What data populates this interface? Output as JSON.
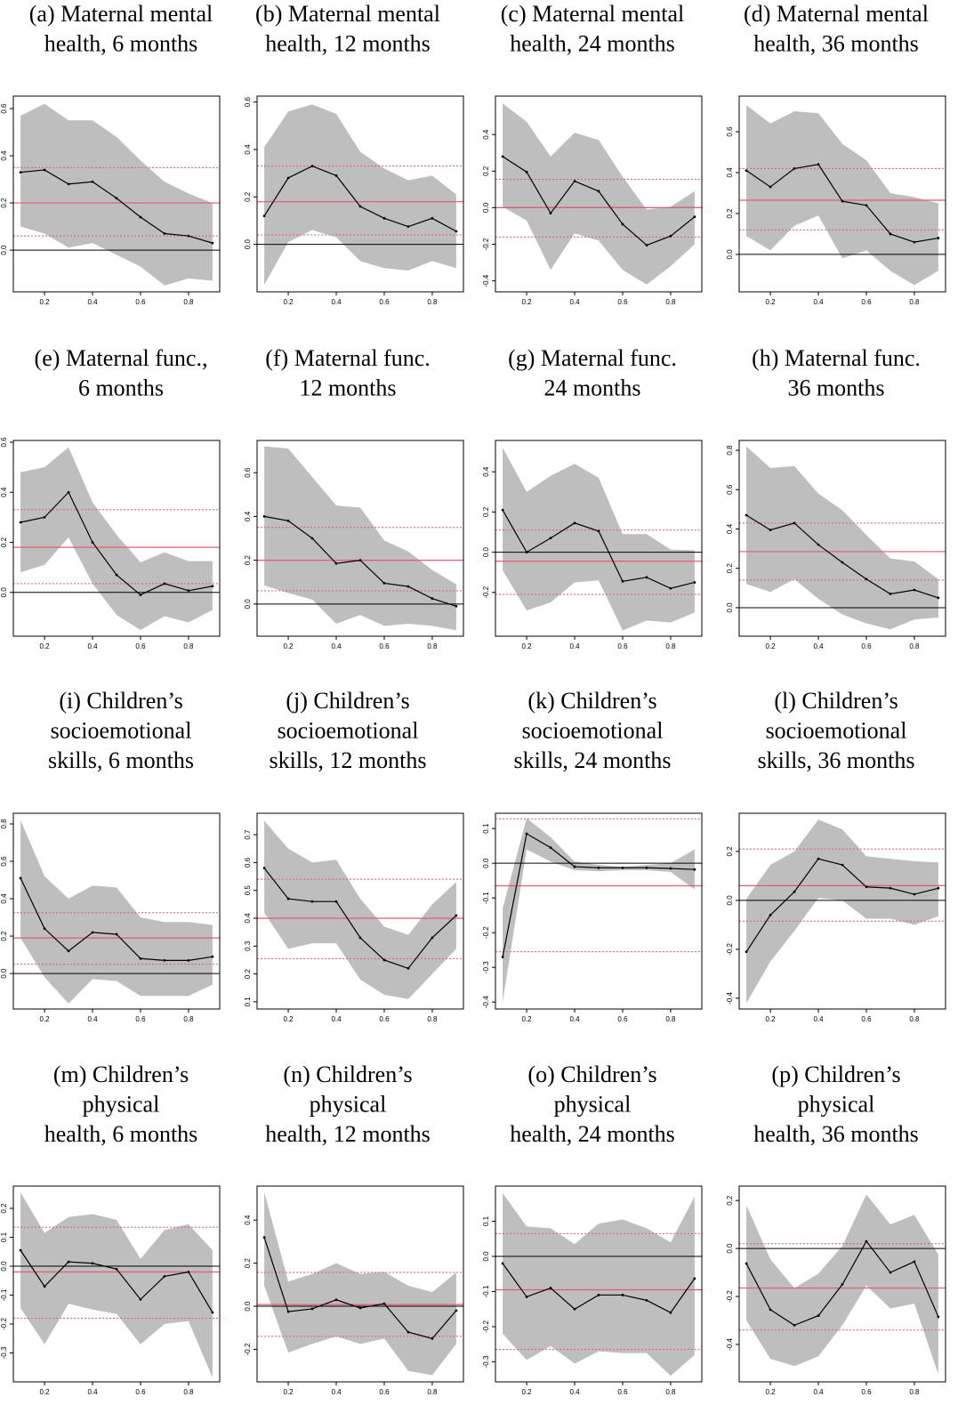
{
  "style": {
    "line_color": "#000000",
    "band_color": "#bebebe",
    "ref_color": "#e8596e",
    "zero_color": "#000000",
    "zero_line": 0
  },
  "chart_data": [
    {
      "type": "line",
      "title": [
        "(a) Maternal mental",
        "health, 6 months"
      ],
      "x": [
        0.1,
        0.2,
        0.3,
        0.4,
        0.5,
        0.6,
        0.7,
        0.8,
        0.9
      ],
      "values": [
        0.33,
        0.34,
        0.28,
        0.29,
        0.22,
        0.14,
        0.07,
        0.06,
        0.03
      ],
      "upper": [
        0.57,
        0.62,
        0.55,
        0.55,
        0.48,
        0.38,
        0.29,
        0.24,
        0.2
      ],
      "lower": [
        0.1,
        0.07,
        0.01,
        0.03,
        -0.02,
        -0.07,
        -0.15,
        -0.12,
        -0.13
      ],
      "mean": 0.2,
      "mean_ci": [
        0.06,
        0.35
      ],
      "xlim": [
        0.07,
        0.93
      ],
      "xticks": [
        0.2,
        0.4,
        0.6,
        0.8
      ],
      "ylim": [
        -0.177,
        0.653
      ],
      "yticks": [
        {
          "value": 0,
          "label": "0.0"
        },
        0.2,
        0.4,
        0.6
      ]
    },
    {
      "type": "line",
      "title": [
        "(b) Maternal mental",
        "health, 12 months"
      ],
      "x": [
        0.1,
        0.2,
        0.3,
        0.4,
        0.5,
        0.6,
        0.7,
        0.8,
        0.9
      ],
      "values": [
        0.12,
        0.28,
        0.33,
        0.29,
        0.16,
        0.11,
        0.075,
        0.11,
        0.055
      ],
      "upper": [
        0.41,
        0.56,
        0.59,
        0.55,
        0.39,
        0.32,
        0.27,
        0.29,
        0.21
      ],
      "lower": [
        -0.17,
        0.01,
        0.06,
        0.03,
        -0.07,
        -0.1,
        -0.11,
        -0.07,
        -0.1
      ],
      "mean": 0.18,
      "mean_ci": [
        0.04,
        0.33
      ],
      "xlim": [
        0.07,
        0.93
      ],
      "xticks": [
        0.2,
        0.4,
        0.6,
        0.8
      ],
      "ylim": [
        -0.2,
        0.625
      ],
      "yticks": [
        {
          "value": 0,
          "label": "0.0"
        },
        0.2,
        0.4,
        0.6
      ]
    },
    {
      "type": "line",
      "title": [
        "(c) Maternal mental",
        "health, 24 months"
      ],
      "x": [
        0.1,
        0.2,
        0.3,
        0.4,
        0.5,
        0.6,
        0.7,
        0.8,
        0.9
      ],
      "values": [
        0.28,
        0.195,
        -0.03,
        0.145,
        0.09,
        -0.09,
        -0.205,
        -0.155,
        -0.05
      ],
      "upper": [
        0.57,
        0.47,
        0.28,
        0.41,
        0.37,
        0.17,
        -0.01,
        0.005,
        0.09
      ],
      "lower": [
        0.005,
        -0.07,
        -0.34,
        -0.14,
        -0.18,
        -0.34,
        -0.42,
        -0.32,
        -0.2
      ],
      "mean": 0.0,
      "mean_ci": [
        -0.16,
        0.155
      ],
      "xlim": [
        0.07,
        0.93
      ],
      "xticks": [
        0.2,
        0.4,
        0.6,
        0.8
      ],
      "ylim": [
        -0.46,
        0.61
      ],
      "yticks": [
        -0.4,
        -0.2,
        {
          "value": 0,
          "label": "0.0"
        },
        0.2,
        0.4
      ]
    },
    {
      "type": "line",
      "title": [
        "(d) Maternal mental",
        "health, 36 months"
      ],
      "x": [
        0.1,
        0.2,
        0.3,
        0.4,
        0.5,
        0.6,
        0.7,
        0.8,
        0.9
      ],
      "values": [
        0.41,
        0.33,
        0.42,
        0.44,
        0.26,
        0.24,
        0.1,
        0.06,
        0.08
      ],
      "upper": [
        0.73,
        0.64,
        0.7,
        0.69,
        0.54,
        0.46,
        0.3,
        0.28,
        0.25
      ],
      "lower": [
        0.09,
        0.02,
        0.14,
        0.19,
        -0.02,
        0.02,
        -0.08,
        -0.15,
        -0.08
      ],
      "mean": 0.265,
      "mean_ci": [
        0.12,
        0.42
      ],
      "xlim": [
        0.07,
        0.93
      ],
      "xticks": [
        0.2,
        0.4,
        0.6,
        0.8
      ],
      "ylim": [
        -0.183,
        0.774
      ],
      "yticks": [
        {
          "value": 0,
          "label": "0.0"
        },
        0.2,
        0.4,
        0.6
      ]
    },
    {
      "type": "line",
      "title": [
        "(e) Maternal func.,",
        "6 months"
      ],
      "x": [
        0.1,
        0.2,
        0.3,
        0.4,
        0.5,
        0.6,
        0.7,
        0.8,
        0.9
      ],
      "values": [
        0.28,
        0.3,
        0.4,
        0.2,
        0.07,
        -0.01,
        0.035,
        0.007,
        0.025
      ],
      "upper": [
        0.48,
        0.5,
        0.58,
        0.36,
        0.23,
        0.12,
        0.16,
        0.125,
        0.125
      ],
      "lower": [
        0.08,
        0.11,
        0.22,
        0.035,
        -0.09,
        -0.15,
        -0.095,
        -0.12,
        -0.07
      ],
      "mean": 0.18,
      "mean_ci": [
        0.035,
        0.33
      ],
      "xlim": [
        0.07,
        0.93
      ],
      "xticks": [
        0.2,
        0.4,
        0.6,
        0.8
      ],
      "ylim": [
        -0.175,
        0.607
      ],
      "yticks": [
        {
          "value": 0,
          "label": "0.0"
        },
        0.2,
        0.4,
        0.6
      ]
    },
    {
      "type": "line",
      "title": [
        "(f) Maternal func.",
        "12 months"
      ],
      "x": [
        0.1,
        0.2,
        0.3,
        0.4,
        0.5,
        0.6,
        0.7,
        0.8,
        0.9
      ],
      "values": [
        0.4,
        0.38,
        0.3,
        0.185,
        0.2,
        0.095,
        0.08,
        0.025,
        -0.01
      ],
      "upper": [
        0.72,
        0.71,
        0.58,
        0.45,
        0.44,
        0.29,
        0.24,
        0.155,
        0.09
      ],
      "lower": [
        0.085,
        0.05,
        0.02,
        -0.09,
        -0.05,
        -0.1,
        -0.09,
        -0.1,
        -0.12
      ],
      "mean": 0.2,
      "mean_ci": [
        0.06,
        0.35
      ],
      "xlim": [
        0.07,
        0.93
      ],
      "xticks": [
        0.2,
        0.4,
        0.6,
        0.8
      ],
      "ylim": [
        -0.147,
        0.747
      ],
      "yticks": [
        {
          "value": 0,
          "label": "0.0"
        },
        0.2,
        0.4,
        0.6
      ]
    },
    {
      "type": "line",
      "title": [
        "(g) Maternal func.",
        "24 months"
      ],
      "x": [
        0.1,
        0.2,
        0.3,
        0.4,
        0.5,
        0.6,
        0.7,
        0.8,
        0.9
      ],
      "values": [
        0.21,
        0.0,
        0.07,
        0.145,
        0.105,
        -0.145,
        -0.125,
        -0.18,
        -0.15
      ],
      "upper": [
        0.52,
        0.3,
        0.38,
        0.44,
        0.37,
        0.09,
        0.09,
        0.013,
        0.01
      ],
      "lower": [
        -0.09,
        -0.29,
        -0.25,
        -0.15,
        -0.14,
        -0.39,
        -0.34,
        -0.35,
        -0.3
      ],
      "mean": -0.045,
      "mean_ci": [
        -0.21,
        0.11
      ],
      "xlim": [
        0.07,
        0.93
      ],
      "xticks": [
        0.2,
        0.4,
        0.6,
        0.8
      ],
      "ylim": [
        -0.418,
        0.556
      ],
      "yticks": [
        -0.2,
        {
          "value": 0,
          "label": "0.0"
        },
        0.2,
        0.4
      ]
    },
    {
      "type": "line",
      "title": [
        "(h) Maternal func.",
        "36 months"
      ],
      "x": [
        0.1,
        0.2,
        0.3,
        0.4,
        0.5,
        0.6,
        0.7,
        0.8,
        0.9
      ],
      "values": [
        0.47,
        0.395,
        0.43,
        0.32,
        0.23,
        0.145,
        0.07,
        0.09,
        0.05
      ],
      "upper": [
        0.82,
        0.71,
        0.72,
        0.58,
        0.495,
        0.37,
        0.25,
        0.235,
        0.145
      ],
      "lower": [
        0.12,
        0.08,
        0.145,
        0.045,
        -0.035,
        -0.08,
        -0.11,
        -0.06,
        -0.05
      ],
      "mean": 0.285,
      "mean_ci": [
        0.14,
        0.43
      ],
      "xlim": [
        0.07,
        0.93
      ],
      "xticks": [
        0.2,
        0.4,
        0.6,
        0.8
      ],
      "ylim": [
        -0.145,
        0.85
      ],
      "yticks": [
        {
          "value": 0,
          "label": "0.0"
        },
        0.2,
        0.4,
        0.6,
        0.8
      ]
    },
    {
      "type": "line",
      "title": [
        "(i) Children’s",
        "socioemotional",
        "skills, 6 months"
      ],
      "x": [
        0.1,
        0.2,
        0.3,
        0.4,
        0.5,
        0.6,
        0.7,
        0.8,
        0.9
      ],
      "values": [
        0.51,
        0.24,
        0.12,
        0.22,
        0.21,
        0.08,
        0.07,
        0.07,
        0.09
      ],
      "upper": [
        0.82,
        0.52,
        0.4,
        0.47,
        0.46,
        0.3,
        0.275,
        0.275,
        0.26
      ],
      "lower": [
        0.19,
        -0.02,
        -0.16,
        -0.03,
        -0.04,
        -0.12,
        -0.12,
        -0.12,
        -0.06
      ],
      "mean": 0.19,
      "mean_ci": [
        0.05,
        0.325
      ],
      "xlim": [
        0.07,
        0.93
      ],
      "xticks": [
        0.2,
        0.4,
        0.6,
        0.8
      ],
      "ylim": [
        -0.19,
        0.857
      ],
      "yticks": [
        {
          "value": 0,
          "label": "0.0"
        },
        0.2,
        0.4,
        0.6,
        0.8
      ]
    },
    {
      "type": "line",
      "title": [
        "(j) Children’s",
        "socioemotional",
        "skills, 12 months"
      ],
      "x": [
        0.1,
        0.2,
        0.3,
        0.4,
        0.5,
        0.6,
        0.7,
        0.8,
        0.9
      ],
      "values": [
        0.58,
        0.47,
        0.46,
        0.46,
        0.33,
        0.25,
        0.22,
        0.33,
        0.41
      ],
      "upper": [
        0.75,
        0.65,
        0.6,
        0.61,
        0.47,
        0.37,
        0.34,
        0.45,
        0.53
      ],
      "lower": [
        0.42,
        0.29,
        0.31,
        0.31,
        0.18,
        0.125,
        0.11,
        0.2,
        0.29
      ],
      "mean": 0.4,
      "mean_ci": [
        0.255,
        0.54
      ],
      "xlim": [
        0.07,
        0.93
      ],
      "xticks": [
        0.2,
        0.4,
        0.6,
        0.8
      ],
      "ylim": [
        0.074,
        0.777
      ],
      "yticks": [
        0.1,
        0.2,
        0.3,
        0.4,
        0.5,
        0.6,
        0.7
      ]
    },
    {
      "type": "line",
      "title": [
        "(k) Children’s",
        "socioemotional",
        "skills, 24 months"
      ],
      "x": [
        0.1,
        0.2,
        0.3,
        0.4,
        0.5,
        0.6,
        0.7,
        0.8,
        0.9
      ],
      "values": [
        -0.27,
        0.085,
        0.045,
        -0.01,
        -0.013,
        -0.013,
        -0.013,
        -0.015,
        -0.018
      ],
      "upper": [
        -0.13,
        0.13,
        0.075,
        0.005,
        -0.005,
        -0.01,
        -0.005,
        0,
        0.04
      ],
      "lower": [
        -0.4,
        0.04,
        0.005,
        -0.02,
        -0.023,
        -0.02,
        -0.02,
        -0.025,
        -0.075
      ],
      "mean": -0.065,
      "mean_ci": [
        -0.255,
        0.128
      ],
      "xlim": [
        0.07,
        0.93
      ],
      "xticks": [
        0.2,
        0.4,
        0.6,
        0.8
      ],
      "ylim": [
        -0.42,
        0.144
      ],
      "yticks": [
        -0.4,
        -0.3,
        -0.2,
        -0.1,
        {
          "value": 0,
          "label": "0.0"
        },
        0.1
      ]
    },
    {
      "type": "line",
      "title": [
        "(l) Children’s",
        "socioemotional",
        "skills, 36 months"
      ],
      "x": [
        0.1,
        0.2,
        0.3,
        0.4,
        0.5,
        0.6,
        0.7,
        0.8,
        0.9
      ],
      "values": [
        -0.21,
        -0.06,
        0.035,
        0.17,
        0.145,
        0.055,
        0.05,
        0.025,
        0.05
      ],
      "upper": [
        0.007,
        0.145,
        0.2,
        0.33,
        0.29,
        0.18,
        0.17,
        0.16,
        0.155
      ],
      "lower": [
        -0.42,
        -0.25,
        -0.125,
        0.01,
        0.0,
        -0.075,
        -0.075,
        -0.1,
        -0.065
      ],
      "mean": 0.06,
      "mean_ci": [
        -0.085,
        0.21
      ],
      "xlim": [
        0.07,
        0.93
      ],
      "xticks": [
        0.2,
        0.4,
        0.6,
        0.8
      ],
      "ylim": [
        -0.444,
        0.356
      ],
      "yticks": [
        -0.4,
        -0.2,
        {
          "value": 0,
          "label": "0.0"
        },
        0.2
      ]
    },
    {
      "type": "line",
      "title": [
        "(m) Children’s",
        "physical",
        "health, 6 months"
      ],
      "x": [
        0.1,
        0.2,
        0.3,
        0.4,
        0.5,
        0.6,
        0.7,
        0.8,
        0.9
      ],
      "values": [
        0.055,
        -0.07,
        0.015,
        0.01,
        -0.01,
        -0.115,
        -0.035,
        -0.02,
        -0.16
      ],
      "upper": [
        0.255,
        0.115,
        0.17,
        0.18,
        0.16,
        0.025,
        0.125,
        0.145,
        0.055
      ],
      "lower": [
        -0.145,
        -0.27,
        -0.13,
        -0.15,
        -0.165,
        -0.27,
        -0.2,
        -0.19,
        -0.385
      ],
      "mean": -0.02,
      "mean_ci": [
        -0.18,
        0.135
      ],
      "xlim": [
        0.07,
        0.93
      ],
      "xticks": [
        0.2,
        0.4,
        0.6,
        0.8
      ],
      "ylim": [
        -0.4,
        0.277
      ],
      "yticks": [
        -0.3,
        -0.2,
        -0.1,
        {
          "value": 0,
          "label": "0.0"
        },
        0.1,
        0.2
      ]
    },
    {
      "type": "line",
      "title": [
        "(n) Children’s",
        "physical",
        "health, 12 months"
      ],
      "x": [
        0.1,
        0.2,
        0.3,
        0.4,
        0.5,
        0.6,
        0.7,
        0.8,
        0.9
      ],
      "values": [
        0.32,
        -0.025,
        -0.012,
        0.03,
        -0.008,
        0.012,
        -0.12,
        -0.15,
        -0.02
      ],
      "upper": [
        0.53,
        0.115,
        0.15,
        0.2,
        0.15,
        0.16,
        0.095,
        0.066,
        0.157
      ],
      "lower": [
        0.095,
        -0.215,
        -0.175,
        -0.14,
        -0.175,
        -0.15,
        -0.3,
        -0.32,
        -0.175
      ],
      "mean": 0.008,
      "mean_ci": [
        -0.14,
        0.157
      ],
      "xlim": [
        0.07,
        0.93
      ],
      "xticks": [
        0.2,
        0.4,
        0.6,
        0.8
      ],
      "ylim": [
        -0.351,
        0.558
      ],
      "yticks": [
        -0.2,
        {
          "value": 0,
          "label": "0.0"
        },
        0.2,
        0.4
      ]
    },
    {
      "type": "line",
      "title": [
        "(o) Children’s",
        "physical",
        "health, 24 months"
      ],
      "x": [
        0.1,
        0.2,
        0.3,
        0.4,
        0.5,
        0.6,
        0.7,
        0.8,
        0.9
      ],
      "values": [
        -0.02,
        -0.115,
        -0.09,
        -0.15,
        -0.11,
        -0.11,
        -0.125,
        -0.16,
        -0.063
      ],
      "upper": [
        0.18,
        0.085,
        0.08,
        0.035,
        0.093,
        0.105,
        0.08,
        0.04,
        0.17
      ],
      "lower": [
        -0.22,
        -0.295,
        -0.255,
        -0.305,
        -0.27,
        -0.275,
        -0.275,
        -0.34,
        -0.28
      ],
      "mean": -0.095,
      "mean_ci": [
        -0.265,
        0.065
      ],
      "xlim": [
        0.07,
        0.93
      ],
      "xticks": [
        0.2,
        0.4,
        0.6,
        0.8
      ],
      "ylim": [
        -0.357,
        0.2
      ],
      "yticks": [
        -0.3,
        -0.2,
        -0.1,
        {
          "value": 0,
          "label": "0.0"
        },
        0.1
      ]
    },
    {
      "type": "line",
      "title": [
        "(p) Children’s",
        "physical",
        "health, 36 months"
      ],
      "x": [
        0.1,
        0.2,
        0.3,
        0.4,
        0.5,
        0.6,
        0.7,
        0.8,
        0.9
      ],
      "values": [
        -0.063,
        -0.255,
        -0.32,
        -0.28,
        -0.15,
        0.03,
        -0.1,
        -0.055,
        -0.285
      ],
      "upper": [
        0.18,
        -0.045,
        -0.165,
        -0.105,
        0.01,
        0.225,
        0.1,
        0.14,
        -0.025
      ],
      "lower": [
        -0.3,
        -0.46,
        -0.49,
        -0.45,
        -0.32,
        -0.155,
        -0.25,
        -0.23,
        -0.525
      ],
      "mean": -0.165,
      "mean_ci": [
        -0.34,
        0.02
      ],
      "xlim": [
        0.07,
        0.93
      ],
      "xticks": [
        0.2,
        0.4,
        0.6,
        0.8
      ],
      "ylim": [
        -0.556,
        0.26
      ],
      "yticks": [
        -0.4,
        -0.2,
        {
          "value": 0,
          "label": "0.0"
        },
        0.2
      ]
    }
  ]
}
